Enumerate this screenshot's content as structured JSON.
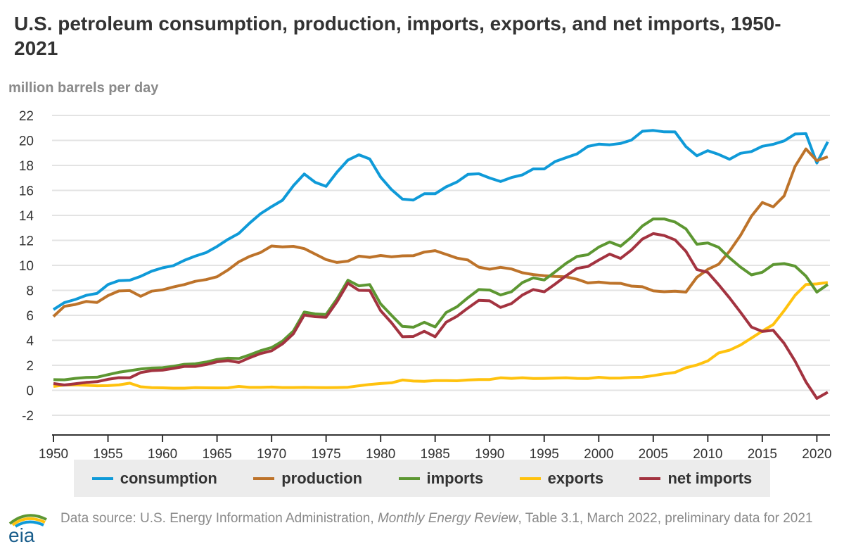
{
  "chart_data": {
    "type": "line",
    "title": "U.S. petroleum consumption, production, imports, exports, and net imports, 1950-2021",
    "ylabel": "million barrels per day",
    "xlabel": "",
    "ylim": [
      -2,
      22
    ],
    "xlim": [
      1950,
      2021
    ],
    "yticks": [
      "22",
      "20",
      "18",
      "16",
      "14",
      "12",
      "10",
      "8",
      "6",
      "4",
      "2",
      "0",
      "-2"
    ],
    "xticks": [
      "1950",
      "1955",
      "1960",
      "1965",
      "1970",
      "1975",
      "1980",
      "1985",
      "1990",
      "1995",
      "2000",
      "2005",
      "2010",
      "2015",
      "2020"
    ],
    "x_start": 1950,
    "grid": true,
    "legend_position": "bottom",
    "series": [
      {
        "name": "consumption",
        "color": "#0f9ad8",
        "values": [
          6.46,
          7.02,
          7.27,
          7.6,
          7.76,
          8.46,
          8.78,
          8.81,
          9.12,
          9.53,
          9.8,
          9.98,
          10.4,
          10.74,
          11.02,
          11.51,
          12.08,
          12.56,
          13.39,
          14.14,
          14.7,
          15.21,
          16.37,
          17.31,
          16.65,
          16.32,
          17.46,
          18.43,
          18.85,
          18.51,
          17.06,
          16.06,
          15.3,
          15.23,
          15.73,
          15.73,
          16.28,
          16.67,
          17.28,
          17.33,
          16.99,
          16.71,
          17.03,
          17.24,
          17.72,
          17.72,
          18.31,
          18.62,
          18.92,
          19.52,
          19.7,
          19.65,
          19.76,
          20.03,
          20.73,
          20.8,
          20.69,
          20.68,
          19.5,
          18.77,
          19.18,
          18.88,
          18.49,
          18.97,
          19.11,
          19.53,
          19.69,
          19.96,
          20.51,
          20.54,
          18.19,
          19.89
        ]
      },
      {
        "name": "production",
        "color": "#bd732a",
        "values": [
          5.91,
          6.72,
          6.87,
          7.11,
          7.03,
          7.58,
          7.95,
          7.98,
          7.52,
          7.93,
          8.04,
          8.27,
          8.46,
          8.72,
          8.86,
          9.09,
          9.63,
          10.28,
          10.72,
          11.03,
          11.55,
          11.48,
          11.52,
          11.34,
          10.9,
          10.46,
          10.23,
          10.34,
          10.74,
          10.64,
          10.79,
          10.68,
          10.76,
          10.77,
          11.06,
          11.18,
          10.88,
          10.58,
          10.43,
          9.86,
          9.69,
          9.84,
          9.71,
          9.41,
          9.26,
          9.17,
          9.11,
          9.08,
          8.89,
          8.59,
          8.66,
          8.57,
          8.56,
          8.34,
          8.29,
          7.96,
          7.89,
          7.93,
          7.86,
          9.04,
          9.68,
          10.09,
          11.13,
          12.4,
          13.94,
          15.03,
          14.68,
          15.56,
          17.92,
          19.32,
          18.38,
          18.69
        ]
      },
      {
        "name": "imports",
        "color": "#5d9732",
        "values": [
          0.85,
          0.84,
          0.95,
          1.03,
          1.05,
          1.25,
          1.44,
          1.57,
          1.7,
          1.78,
          1.81,
          1.92,
          2.08,
          2.12,
          2.26,
          2.47,
          2.57,
          2.54,
          2.84,
          3.17,
          3.42,
          3.93,
          4.74,
          6.26,
          6.11,
          6.06,
          7.31,
          8.81,
          8.36,
          8.46,
          6.91,
          6.0,
          5.11,
          5.05,
          5.44,
          5.07,
          6.22,
          6.68,
          7.4,
          8.06,
          8.02,
          7.63,
          7.89,
          8.62,
          9.0,
          8.83,
          9.48,
          10.16,
          10.71,
          10.85,
          11.46,
          11.87,
          11.53,
          12.26,
          13.15,
          13.71,
          13.71,
          13.47,
          12.92,
          11.69,
          11.79,
          11.44,
          10.6,
          9.86,
          9.24,
          9.45,
          10.06,
          10.14,
          9.94,
          9.14,
          7.86,
          8.47
        ]
      },
      {
        "name": "exports",
        "color": "#ffc20e",
        "values": [
          0.31,
          0.42,
          0.43,
          0.4,
          0.36,
          0.37,
          0.43,
          0.57,
          0.28,
          0.21,
          0.2,
          0.17,
          0.17,
          0.21,
          0.2,
          0.19,
          0.2,
          0.31,
          0.23,
          0.23,
          0.26,
          0.22,
          0.22,
          0.23,
          0.22,
          0.21,
          0.22,
          0.24,
          0.36,
          0.47,
          0.54,
          0.6,
          0.82,
          0.74,
          0.72,
          0.78,
          0.78,
          0.76,
          0.82,
          0.86,
          0.86,
          1.0,
          0.95,
          1.0,
          0.94,
          0.95,
          0.98,
          1.0,
          0.95,
          0.94,
          1.04,
          0.97,
          0.98,
          1.03,
          1.05,
          1.17,
          1.32,
          1.43,
          1.8,
          2.02,
          2.35,
          2.99,
          3.21,
          3.62,
          4.18,
          4.74,
          5.26,
          6.38,
          7.6,
          8.47,
          8.51,
          8.63
        ]
      },
      {
        "name": "net imports",
        "color": "#a33340",
        "values": [
          0.54,
          0.42,
          0.52,
          0.63,
          0.69,
          0.88,
          1.01,
          1.0,
          1.42,
          1.57,
          1.61,
          1.75,
          1.91,
          1.91,
          2.06,
          2.28,
          2.37,
          2.23,
          2.61,
          2.94,
          3.16,
          3.71,
          4.52,
          6.03,
          5.89,
          5.85,
          7.09,
          8.57,
          8.0,
          7.99,
          6.37,
          5.4,
          4.29,
          4.31,
          4.72,
          4.29,
          5.44,
          5.92,
          6.58,
          7.2,
          7.16,
          6.63,
          6.94,
          7.62,
          8.06,
          7.88,
          8.5,
          9.16,
          9.76,
          9.91,
          10.42,
          10.9,
          10.55,
          11.23,
          12.1,
          12.54,
          12.39,
          12.04,
          11.12,
          9.67,
          9.44,
          8.45,
          7.39,
          6.24,
          5.06,
          4.71,
          4.8,
          3.76,
          2.34,
          0.67,
          -0.65,
          -0.16
        ]
      }
    ]
  },
  "footer": {
    "prefix": "Data source: U.S. Energy Information Administration, ",
    "publication": "Monthly Energy Review",
    "suffix": ", Table 3.1, March 2022, preliminary data for 2021"
  },
  "logo_text": "eia"
}
